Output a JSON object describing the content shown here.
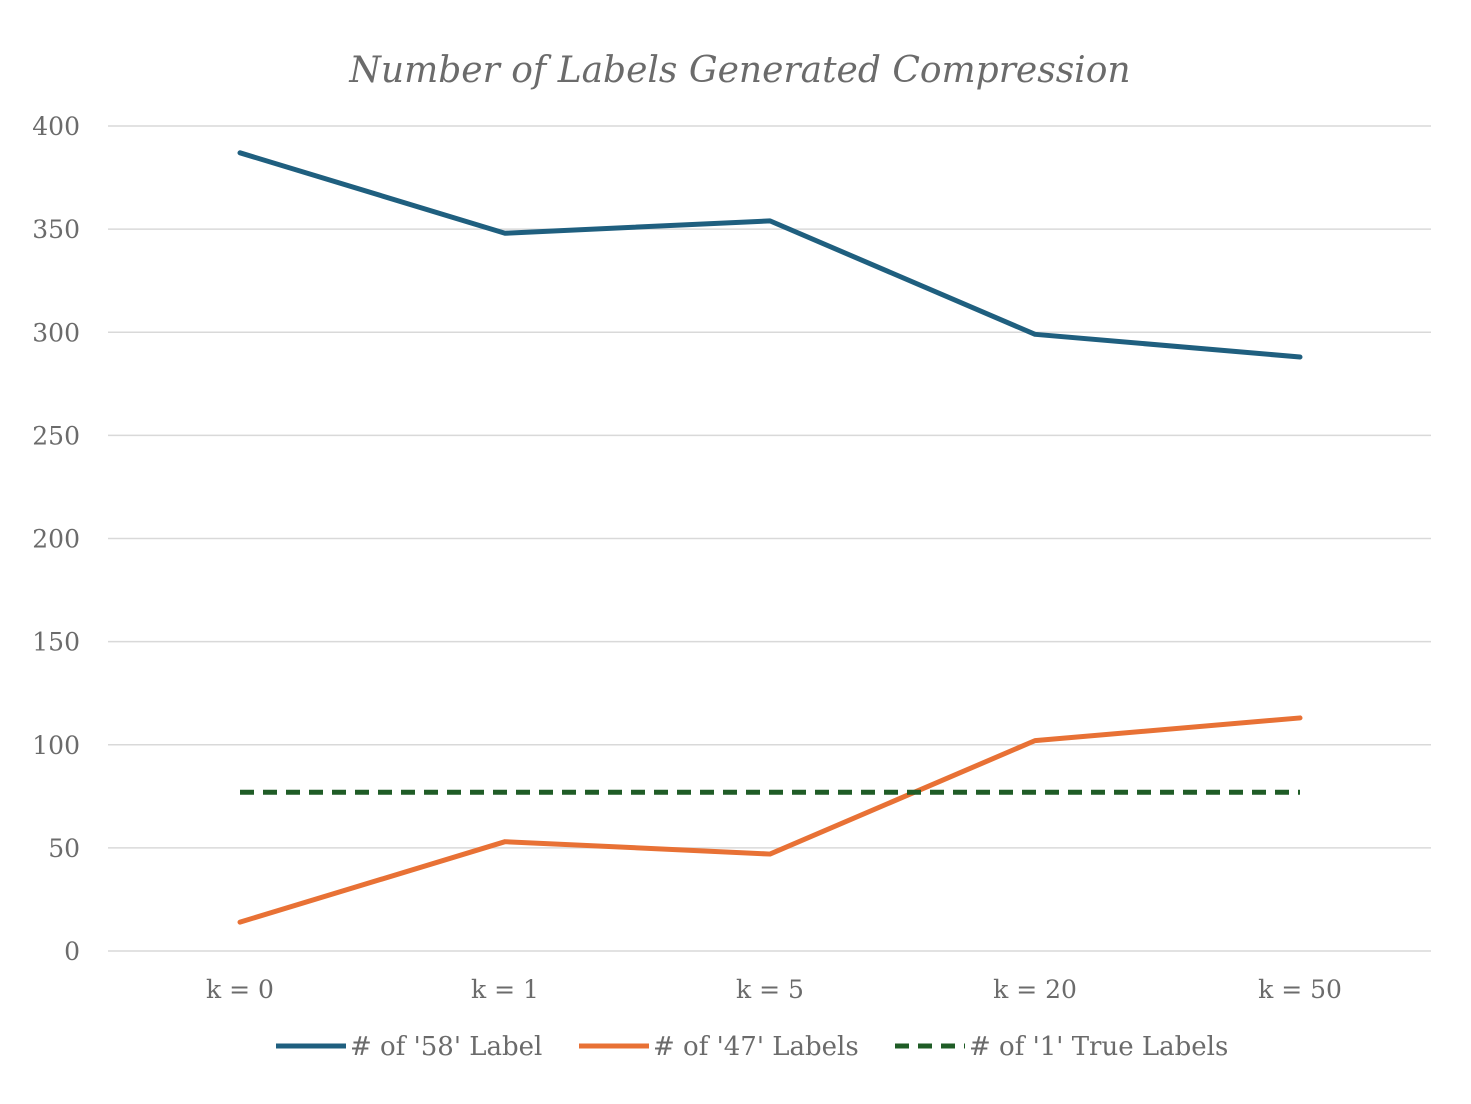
{
  "chart_data": {
    "type": "line",
    "title": "Number of Labels Generated Compression",
    "xlabel": "",
    "ylabel": "",
    "categories": [
      "k = 0",
      "k = 1",
      "k = 5",
      "k = 20",
      "k = 50"
    ],
    "ylim": [
      0,
      400
    ],
    "yticks": [
      0,
      50,
      100,
      150,
      200,
      250,
      300,
      350,
      400
    ],
    "grid": true,
    "legend_position": "bottom",
    "series": [
      {
        "name": "# of '58' Label",
        "values": [
          387,
          348,
          354,
          299,
          288
        ],
        "color": "#1f5f7f",
        "style": "solid"
      },
      {
        "name": "# of '47' Labels",
        "values": [
          14,
          53,
          47,
          102,
          113
        ],
        "color": "#e87135",
        "style": "solid"
      },
      {
        "name": "# of '1' True Labels",
        "values": [
          77,
          77,
          77,
          77,
          77
        ],
        "color": "#1f5c26",
        "style": "dashed"
      }
    ]
  }
}
